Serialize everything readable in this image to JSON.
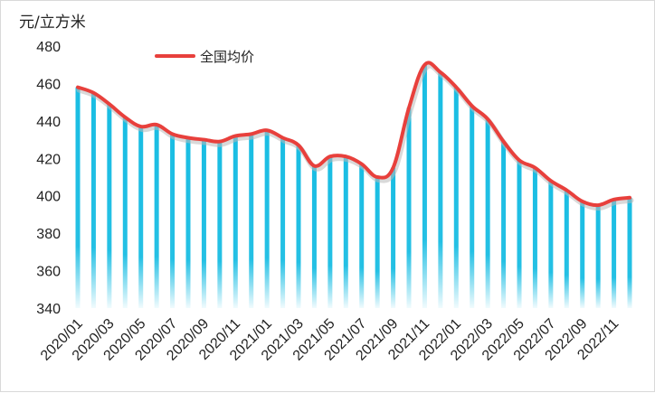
{
  "chart_data": {
    "type": "bar",
    "unit_label": "元/立方米",
    "ylim": [
      340,
      480
    ],
    "yticks": [
      340,
      360,
      380,
      400,
      420,
      440,
      460,
      480
    ],
    "grid": false,
    "legend": {
      "position": "top-left",
      "entries": [
        "全国均价"
      ]
    },
    "series": [
      {
        "name": "全国均价",
        "line_color": "#e8403c",
        "bar_color": "#19bde3",
        "values": [
          458,
          455,
          449,
          442,
          437,
          438,
          433,
          431,
          430,
          429,
          432,
          433,
          435,
          431,
          427,
          416,
          421,
          421,
          417,
          410,
          415,
          447,
          470,
          466,
          458,
          448,
          441,
          429,
          419,
          415,
          408,
          403,
          397,
          395,
          398,
          399
        ]
      }
    ],
    "categories": [
      "2020/01",
      "2020/02",
      "2020/03",
      "2020/04",
      "2020/05",
      "2020/06",
      "2020/07",
      "2020/08",
      "2020/09",
      "2020/10",
      "2020/11",
      "2020/12",
      "2021/01",
      "2021/02",
      "2021/03",
      "2021/04",
      "2021/05",
      "2021/06",
      "2021/07",
      "2021/08",
      "2021/09",
      "2021/10",
      "2021/11",
      "2021/12",
      "2022/01",
      "2022/02",
      "2022/03",
      "2022/04",
      "2022/05",
      "2022/06",
      "2022/07",
      "2022/08",
      "2022/09",
      "2022/10",
      "2022/11",
      "2022/12"
    ],
    "xtick_labels": [
      "2020/01",
      "2020/03",
      "2020/05",
      "2020/07",
      "2020/09",
      "2020/11",
      "2021/01",
      "2021/03",
      "2021/05",
      "2021/07",
      "2021/09",
      "2021/11",
      "2022/01",
      "2022/03",
      "2022/05",
      "2022/07",
      "2022/09",
      "2022/11"
    ]
  }
}
